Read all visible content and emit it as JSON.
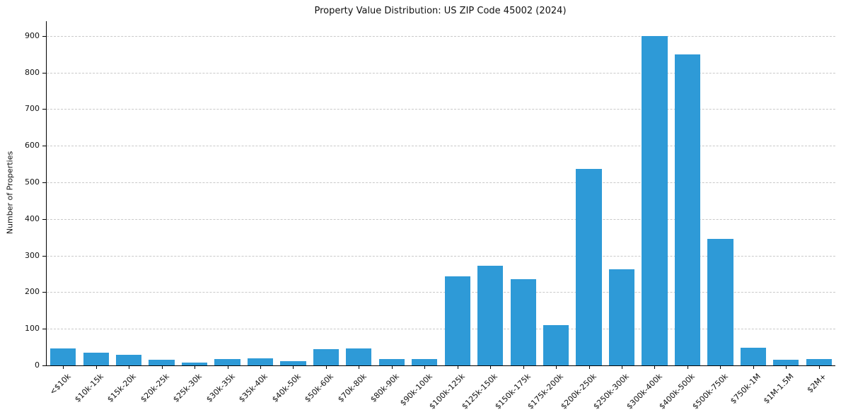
{
  "chart_data": {
    "type": "bar",
    "title": "Property Value Distribution: US ZIP Code 45002 (2024)",
    "xlabel": "",
    "ylabel": "Number of Properties",
    "categories": [
      "<$10k",
      "$10k-15k",
      "$15k-20k",
      "$20k-25k",
      "$25k-30k",
      "$30k-35k",
      "$35k-40k",
      "$40k-50k",
      "$50k-60k",
      "$70k-80k",
      "$80k-90k",
      "$90k-100k",
      "$100k-125k",
      "$125k-150k",
      "$150k-175k",
      "$175k-200k",
      "$200k-250k",
      "$250k-300k",
      "$300k-400k",
      "$400k-500k",
      "$500k-750k",
      "$750k-1M",
      "$1M-1.5M",
      "$2M+"
    ],
    "values": [
      46,
      35,
      29,
      15,
      8,
      17,
      19,
      11,
      44,
      46,
      17,
      17,
      244,
      273,
      236,
      111,
      537,
      262,
      900,
      850,
      345,
      48,
      15,
      17
    ],
    "ylim": [
      0,
      940
    ],
    "yticks": [
      0,
      100,
      200,
      300,
      400,
      500,
      600,
      700,
      800,
      900
    ],
    "grid": "horizontal-dashed",
    "legend": "none",
    "bar_color": "#2e9ad7"
  }
}
